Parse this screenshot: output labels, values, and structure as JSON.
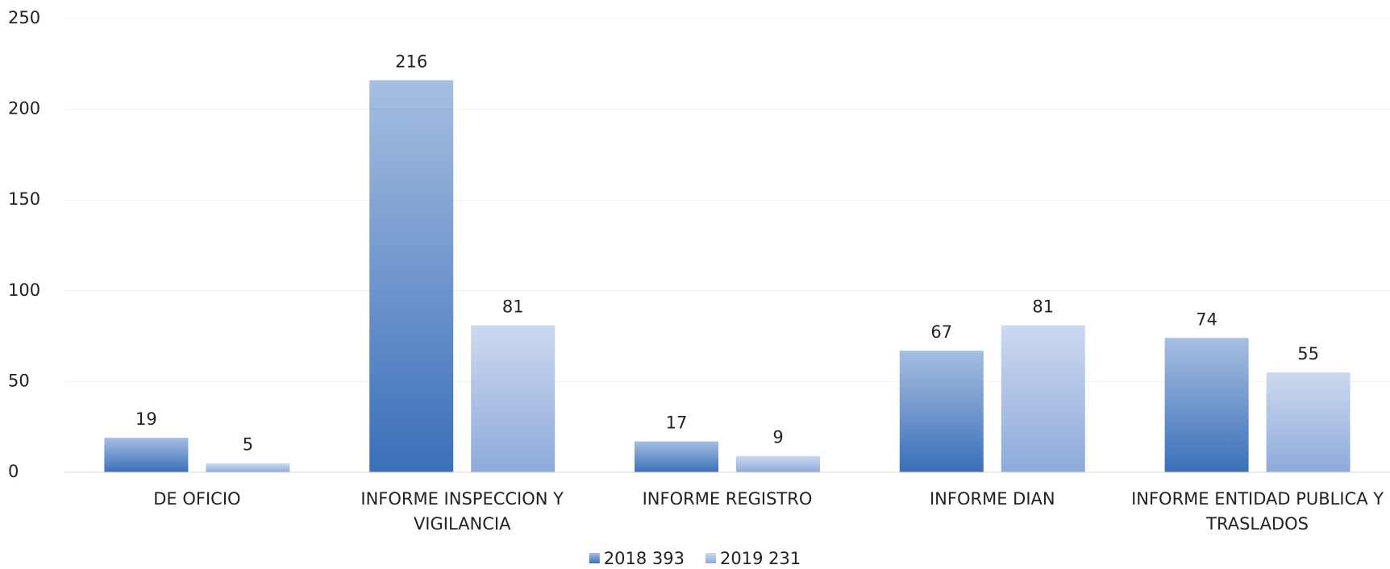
{
  "chart_data": {
    "type": "bar",
    "categories": [
      "DE OFICIO",
      "INFORME  INSPECCION Y VIGILANCIA",
      "INFORME REGISTRO",
      "INFORME DIAN",
      "INFORME ENTIDAD PUBLICA Y TRASLADOS"
    ],
    "series": [
      {
        "name": "2018 393",
        "color": "#3a6fba",
        "values": [
          19,
          216,
          17,
          67,
          74
        ]
      },
      {
        "name": "2019 231",
        "color": "#8eaadb",
        "values": [
          5,
          81,
          9,
          81,
          55
        ]
      }
    ],
    "ylim": [
      0,
      250
    ],
    "yticks": [
      0,
      50,
      100,
      150,
      200,
      250
    ],
    "grid": true,
    "legend": "bottom"
  }
}
